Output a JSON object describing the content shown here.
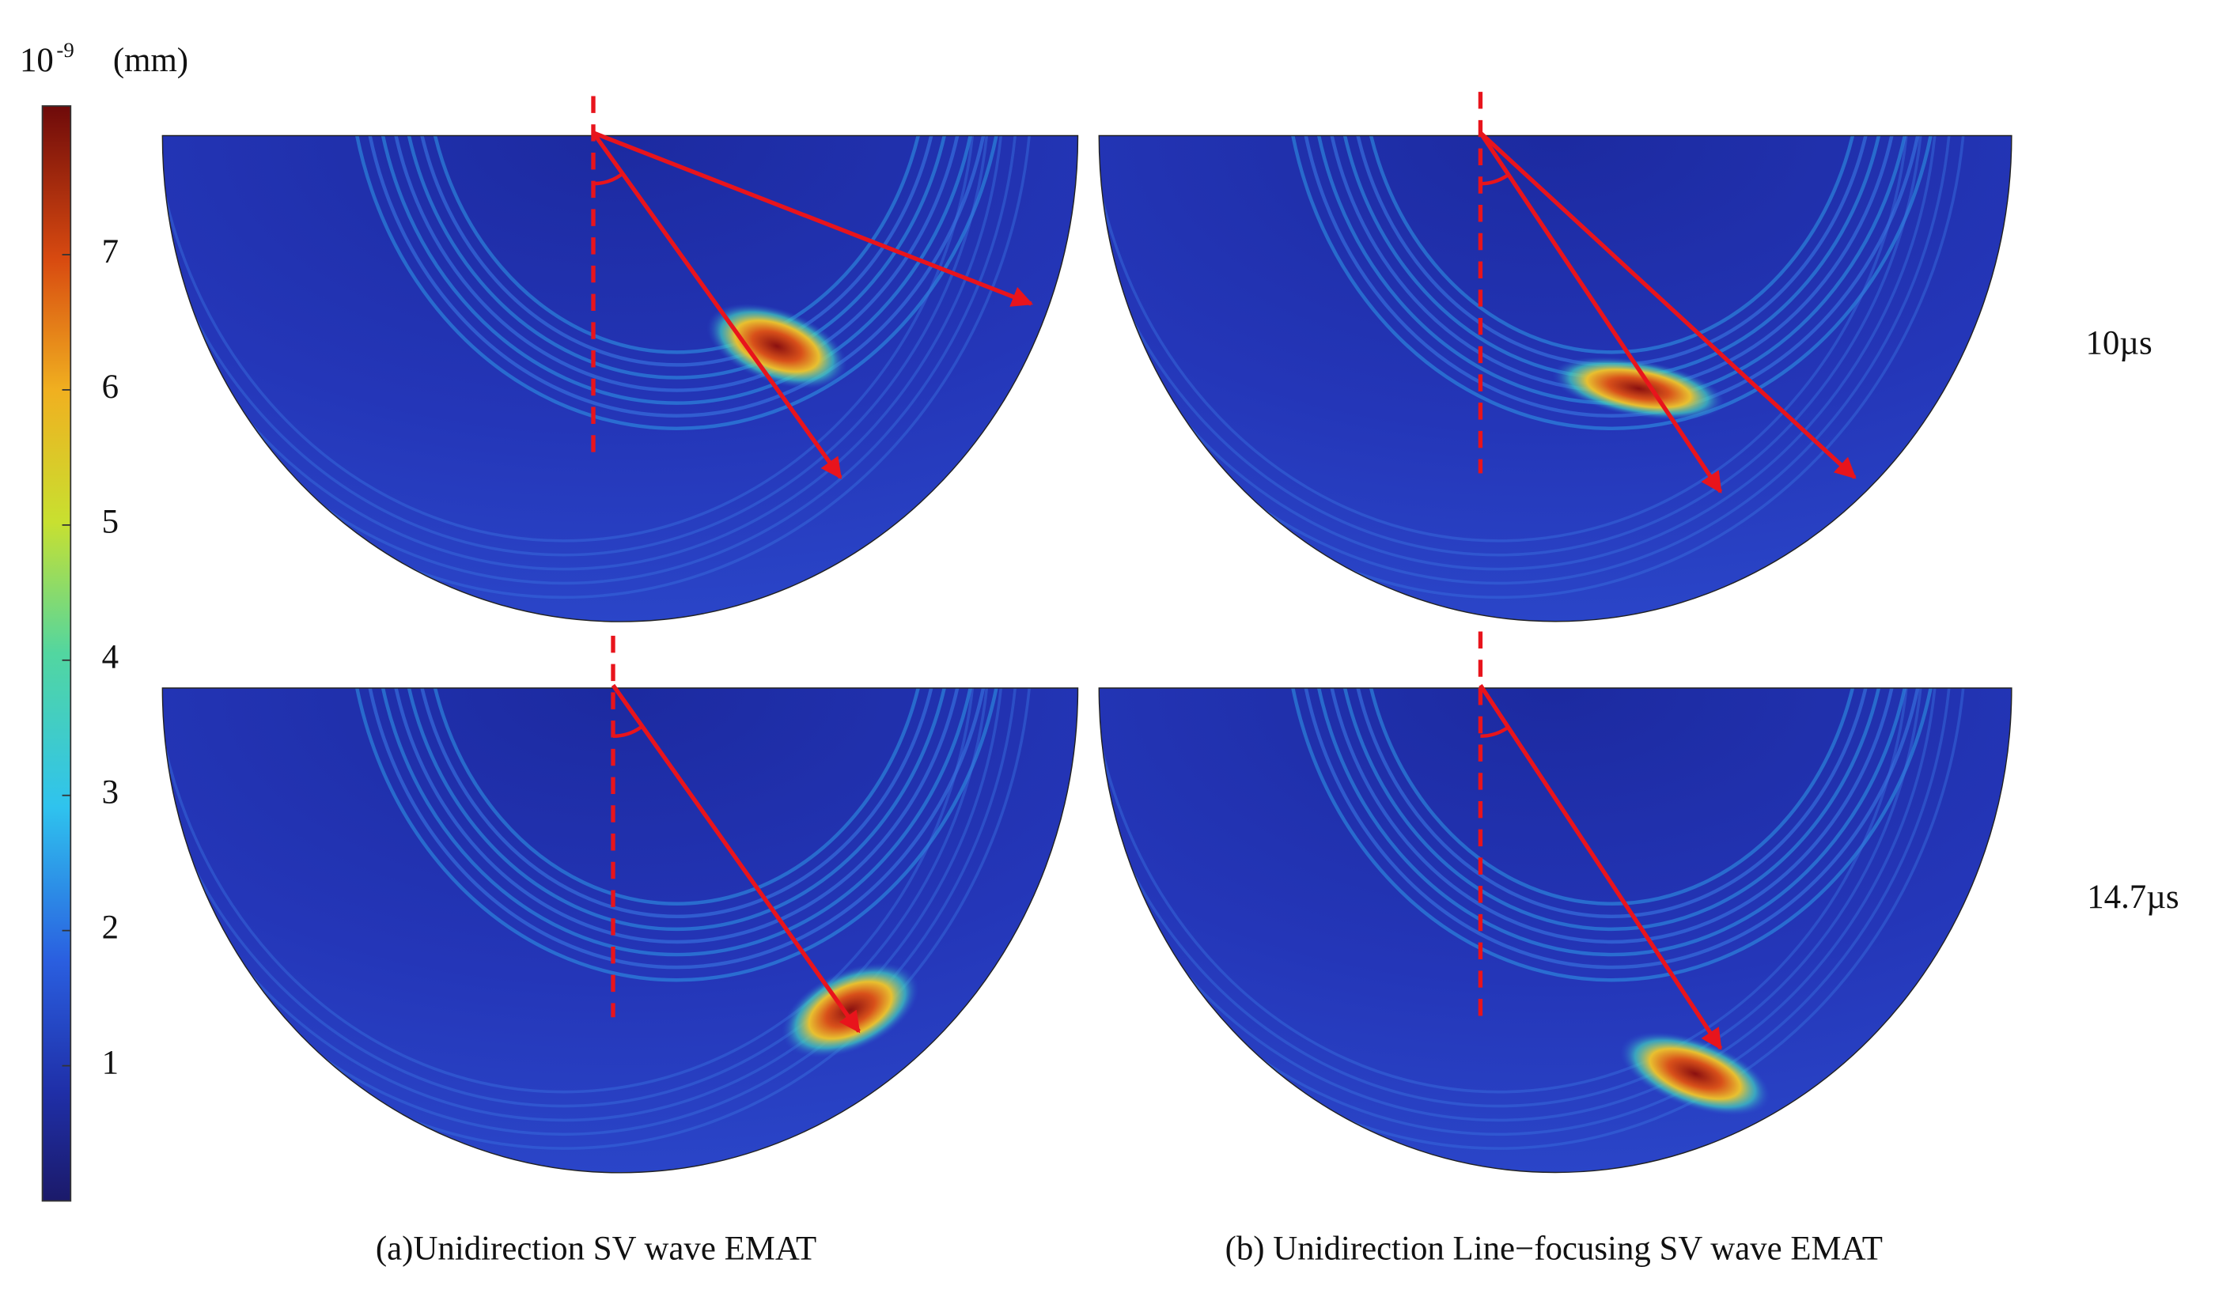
{
  "colorbar": {
    "base": "10",
    "exponent": "-9",
    "unit": "(mm)",
    "lim": [
      0,
      8.1
    ],
    "ticks": [
      1,
      2,
      3,
      4,
      5,
      6,
      7
    ]
  },
  "time_labels": [
    "10µs",
    "14.7µs"
  ],
  "captions": [
    "(a)Unidirection SV wave EMAT",
    "(b) Unidirection Line−focusing SV wave EMAT"
  ]
}
